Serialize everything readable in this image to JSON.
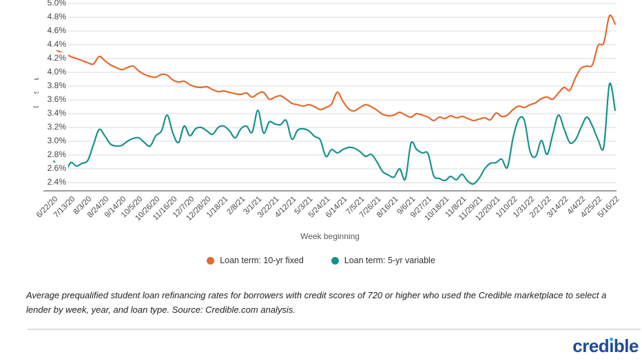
{
  "chart_data": {
    "type": "line",
    "title": "",
    "x_label": "Week beginning",
    "y_label": "Interest rate",
    "x_unit": "weekly observations; one x tick every 3 weeks",
    "ylim": [
      2.4,
      5.0
    ],
    "grid": "horizontal",
    "legend_position": "bottom-center",
    "y_tick_labels": [
      "5.0%",
      "4.8%",
      "4.6%",
      "4.4%",
      "4.2%",
      "4.0%",
      "3.8%",
      "3.6%",
      "3.4%",
      "3.2%",
      "3.0%",
      "2.8%",
      "2.6%",
      "2.4%"
    ],
    "x_tick_labels": [
      "6/22/20",
      "7/13/20",
      "8/3/20",
      "8/24/20",
      "9/14/20",
      "10/5/20",
      "10/26/20",
      "11/16/20",
      "12/7/20",
      "12/28/20",
      "1/18/21",
      "2/8/21",
      "3/1/21",
      "3/22/21",
      "4/12/21",
      "5/3/21",
      "5/24/21",
      "6/14/21",
      "7/5/21",
      "7/26/21",
      "8/16/21",
      "9/6/21",
      "9/27/21",
      "10/18/21",
      "11/8/21",
      "11/29/21",
      "12/20/21",
      "1/10/22",
      "1/31/22",
      "2/21/22",
      "3/14/22",
      "4/4/22",
      "4/25/22",
      "5/16/22"
    ],
    "x_tick_every": 3,
    "series": [
      {
        "name": "Loan term: 10-yr fixed",
        "color": "#E4692C",
        "values": [
          4.35,
          4.3,
          4.27,
          4.23,
          4.2,
          4.17,
          4.14,
          4.12,
          4.23,
          4.17,
          4.11,
          4.07,
          4.04,
          4.07,
          4.09,
          4.02,
          3.97,
          3.94,
          3.93,
          3.97,
          3.96,
          3.89,
          3.86,
          3.87,
          3.82,
          3.79,
          3.78,
          3.79,
          3.75,
          3.72,
          3.73,
          3.71,
          3.69,
          3.68,
          3.7,
          3.64,
          3.69,
          3.71,
          3.61,
          3.64,
          3.66,
          3.61,
          3.55,
          3.53,
          3.51,
          3.53,
          3.5,
          3.46,
          3.49,
          3.54,
          3.71,
          3.58,
          3.47,
          3.44,
          3.49,
          3.53,
          3.5,
          3.45,
          3.39,
          3.37,
          3.38,
          3.42,
          3.38,
          3.35,
          3.4,
          3.38,
          3.35,
          3.3,
          3.35,
          3.33,
          3.37,
          3.34,
          3.36,
          3.33,
          3.3,
          3.32,
          3.34,
          3.31,
          3.41,
          3.36,
          3.38,
          3.46,
          3.51,
          3.49,
          3.53,
          3.56,
          3.62,
          3.64,
          3.61,
          3.7,
          3.78,
          3.74,
          3.92,
          4.06,
          4.09,
          4.11,
          4.39,
          4.43,
          4.82,
          4.7
        ]
      },
      {
        "name": "Loan term: 5-yr variable",
        "color": "#17918C",
        "values": [
          2.72,
          2.58,
          2.55,
          2.69,
          2.64,
          2.68,
          2.72,
          2.95,
          3.17,
          3.08,
          2.96,
          2.93,
          2.94,
          3.0,
          3.04,
          3.05,
          2.98,
          2.93,
          3.08,
          3.15,
          3.38,
          3.12,
          2.98,
          3.22,
          3.08,
          3.18,
          3.2,
          3.15,
          3.1,
          3.2,
          3.22,
          3.15,
          3.05,
          3.18,
          3.22,
          3.13,
          3.45,
          3.12,
          3.28,
          3.25,
          3.24,
          3.3,
          3.03,
          3.16,
          3.18,
          3.15,
          3.07,
          3.02,
          2.78,
          2.88,
          2.83,
          2.88,
          2.91,
          2.9,
          2.85,
          2.78,
          2.81,
          2.7,
          2.56,
          2.51,
          2.48,
          2.6,
          2.45,
          2.97,
          2.88,
          2.83,
          2.82,
          2.5,
          2.46,
          2.43,
          2.49,
          2.44,
          2.52,
          2.42,
          2.38,
          2.46,
          2.6,
          2.68,
          2.69,
          2.74,
          2.62,
          3.05,
          3.32,
          3.3,
          2.85,
          2.78,
          3.01,
          2.81,
          3.1,
          3.38,
          3.18,
          2.98,
          3.02,
          3.2,
          3.35,
          3.22,
          3.02,
          2.92,
          3.83,
          3.45
        ]
      }
    ],
    "style": {
      "gridline_color": "#d9d9d9",
      "baseline_color": "#9a9a9a",
      "line_width": 2.2
    }
  },
  "caption": {
    "text": "Average prequalified student loan refinancing rates for borrowers with credit scores of 720 or higher who used the Credible marketplace to select a lender by week, year, and loan type. Source: Credible.com analysis."
  },
  "footer": {
    "logo_text": "credible",
    "logo_color": "#1d4b96",
    "logo_dot_color": "#2ba9e2"
  }
}
